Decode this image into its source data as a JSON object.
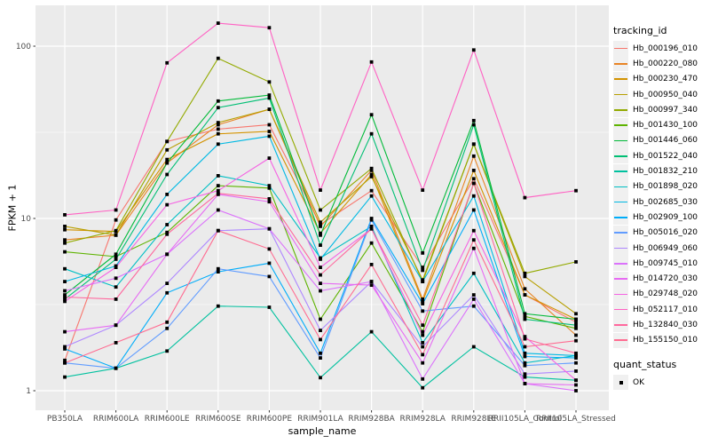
{
  "chart_data": {
    "type": "line",
    "title": "",
    "xlabel": "sample_name",
    "ylabel": "FPKM + 1",
    "yscale": "log10",
    "ylim": [
      0.78,
      173
    ],
    "y_ticks": [
      1,
      10,
      100
    ],
    "y_minor_ticks": [
      3.1623,
      31.623
    ],
    "grid": true,
    "point_shape": "filled-square",
    "x_categories": [
      "PB350LA",
      "RRIM600LA",
      "RRIM600LE",
      "RRIM600SE",
      "RRIM600PE",
      "RRIM901LA",
      "RRIM928BA",
      "RRIM928LA",
      "RRIM928LE",
      "RRII105LA_Control",
      "RRII105LA_Stressed"
    ],
    "series": [
      {
        "name": "Hb_000196_010",
        "color": "#F8766D",
        "values": [
          1.5,
          9.8,
          28,
          33,
          35,
          9.2,
          14.5,
          5.2,
          17,
          3.6,
          2.5
        ]
      },
      {
        "name": "Hb_000220_080",
        "color": "#E88526",
        "values": [
          7.5,
          8.0,
          21,
          35,
          43,
          9.0,
          19,
          3.4,
          23,
          3.9,
          2.1
        ]
      },
      {
        "name": "Hb_000230_470",
        "color": "#D39200",
        "values": [
          8.6,
          8.4,
          22,
          31,
          32,
          8.2,
          18,
          3.3,
          19,
          3.6,
          2.6
        ]
      },
      {
        "name": "Hb_000950_040",
        "color": "#B79F00",
        "values": [
          9.0,
          8.0,
          25,
          36,
          43,
          9.5,
          17.5,
          4.4,
          27,
          4.6,
          2.8
        ]
      },
      {
        "name": "Hb_000997_340",
        "color": "#93AA00",
        "values": [
          7.2,
          8.5,
          28,
          85,
          62,
          11.2,
          19.5,
          4.3,
          27,
          4.8,
          5.6
        ]
      },
      {
        "name": "Hb_001430_100",
        "color": "#5EB300",
        "values": [
          6.4,
          6.0,
          8.3,
          15.5,
          15,
          2.6,
          7.2,
          2.2,
          16,
          2.7,
          2.3
        ]
      },
      {
        "name": "Hb_001446_060",
        "color": "#00BA38",
        "values": [
          3.6,
          6.2,
          21,
          48,
          52,
          8.0,
          40,
          6.3,
          37,
          2.8,
          2.6
        ]
      },
      {
        "name": "Hb_001522_040",
        "color": "#00BF74",
        "values": [
          3.4,
          5.8,
          18,
          44,
          50,
          7.0,
          31,
          5.0,
          35,
          2.6,
          2.4
        ]
      },
      {
        "name": "Hb_001832_210",
        "color": "#00C19F",
        "values": [
          1.2,
          1.35,
          1.7,
          3.1,
          3.05,
          1.19,
          2.2,
          1.04,
          1.8,
          1.2,
          1.15
        ]
      },
      {
        "name": "Hb_001898_020",
        "color": "#00BFC4",
        "values": [
          5.1,
          4.0,
          9.2,
          17.7,
          15.5,
          5.9,
          9.0,
          1.9,
          4.8,
          1.45,
          1.6
        ]
      },
      {
        "name": "Hb_002685_030",
        "color": "#00B9E3",
        "values": [
          4.3,
          5.3,
          13.8,
          27,
          30,
          5.8,
          13.5,
          4.3,
          13.5,
          1.65,
          1.6
        ]
      },
      {
        "name": "Hb_002909_100",
        "color": "#00ADFA",
        "values": [
          1.75,
          1.35,
          3.7,
          4.9,
          5.5,
          1.65,
          10,
          3.2,
          11.2,
          1.58,
          1.55
        ]
      },
      {
        "name": "Hb_005016_020",
        "color": "#619CFF",
        "values": [
          1.45,
          1.35,
          2.3,
          5.1,
          4.6,
          1.55,
          9.8,
          2.9,
          3.1,
          1.4,
          1.45
        ]
      },
      {
        "name": "Hb_006949_060",
        "color": "#AE87FF",
        "values": [
          1.8,
          2.4,
          4.2,
          8.5,
          8.7,
          2.24,
          4.3,
          1.8,
          3.6,
          1.25,
          1.3
        ]
      },
      {
        "name": "Hb_009745_010",
        "color": "#DB72FB",
        "values": [
          3.8,
          4.5,
          6.2,
          11.2,
          8.7,
          3.8,
          4.3,
          1.17,
          3.4,
          1.1,
          1.0
        ]
      },
      {
        "name": "Hb_014720_030",
        "color": "#E76BF3",
        "values": [
          2.2,
          2.4,
          6.2,
          13.8,
          12.5,
          4.2,
          4.1,
          1.45,
          6.7,
          1.1,
          1.08
        ]
      },
      {
        "name": "Hb_029748_020",
        "color": "#F564E3",
        "values": [
          3.3,
          5.2,
          12,
          14.5,
          22.4,
          5.2,
          8.7,
          2.1,
          8.5,
          2.06,
          1.15
        ]
      },
      {
        "name": "Hb_052117_010",
        "color": "#FF61C3",
        "values": [
          10.5,
          11.2,
          80,
          136,
          128,
          14.6,
          81,
          14.6,
          95,
          13.2,
          14.5
        ]
      },
      {
        "name": "Hb_132840_030",
        "color": "#FF689E",
        "values": [
          3.5,
          3.4,
          8.1,
          14,
          13,
          4.7,
          8.7,
          2.4,
          16,
          2.0,
          1.65
        ]
      },
      {
        "name": "Hb_155150_010",
        "color": "#FF6C91",
        "values": [
          1.45,
          1.9,
          2.5,
          8.5,
          6.65,
          1.98,
          5.4,
          1.62,
          7.5,
          1.8,
          1.95
        ]
      }
    ],
    "legend": {
      "title": "tracking_id"
    },
    "legend2": {
      "title": "quant_status",
      "items": [
        "OK"
      ]
    },
    "style": {
      "panel_bg": "#EBEBEB",
      "grid_color": "#FFFFFF",
      "point_color": "#000000",
      "tick_label_color": "#4D4D4D",
      "tick_mark_color": "#333333",
      "legend_key_bg": "#F0F0F0"
    }
  }
}
